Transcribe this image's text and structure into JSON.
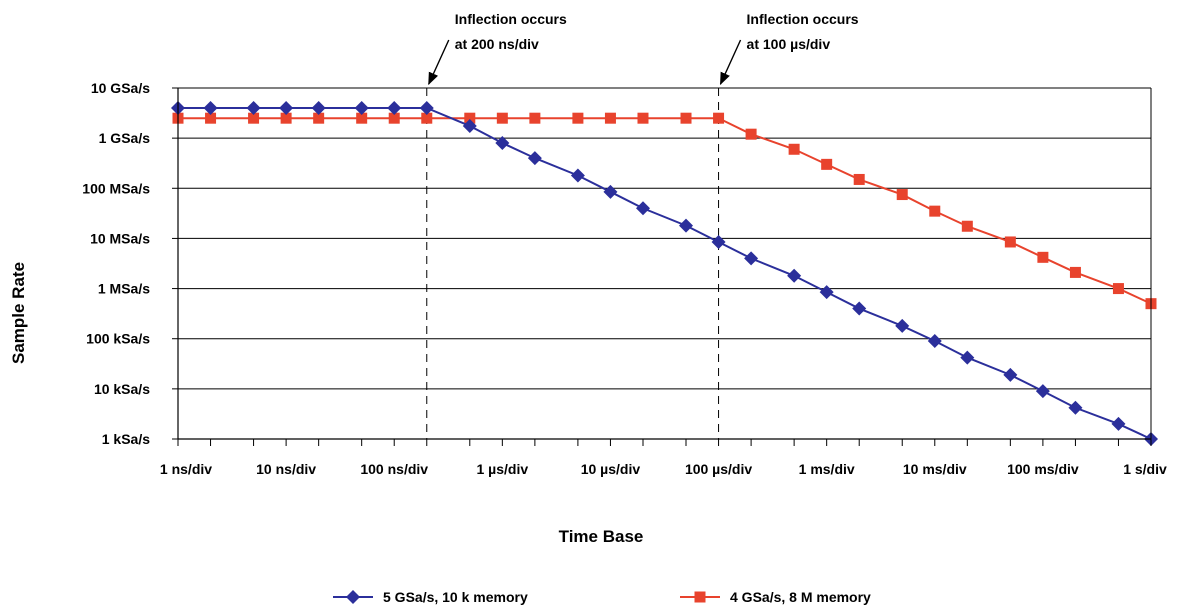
{
  "chart_data": {
    "type": "line",
    "title": "",
    "xlabel": "Time Base",
    "ylabel": "Sample Rate",
    "x_scale": "log",
    "y_scale": "log",
    "xlim": [
      "1 ns/div",
      "1 s/div"
    ],
    "ylim": [
      "1 kSa/s",
      "10 GSa/s"
    ],
    "grid": "horizontal",
    "legend": "bottom",
    "x_tick_labels": [
      "1 ns/div",
      "10 ns/div",
      "100 ns/div",
      "1 µs/div",
      "10 µs/div",
      "100 µs/div",
      "1 ms/div",
      "10 ms/div",
      "100 ms/div",
      "1 s/div"
    ],
    "y_tick_labels": [
      "10 GSa/s",
      "1 GSa/s",
      "100 MSa/s",
      "10 MSa/s",
      "1 MSa/s",
      "100 kSa/s",
      "10 kSa/s",
      "1 kSa/s"
    ],
    "x_unit": "s/div",
    "y_unit": "Sa/s",
    "x": [
      1e-09,
      2e-09,
      5e-09,
      1e-08,
      2e-08,
      5e-08,
      1e-07,
      2e-07,
      5e-07,
      1e-06,
      2e-06,
      5e-06,
      1e-05,
      2e-05,
      5e-05,
      0.0001,
      0.0002,
      0.0005,
      0.001,
      0.002,
      0.005,
      0.01,
      0.02,
      0.05,
      0.1,
      0.2,
      0.5,
      1
    ],
    "series": [
      {
        "name": "5 GSa/s, 10 k memory",
        "color": "#2b2f9b",
        "marker": "diamond",
        "values": [
          4000000000.0,
          4000000000.0,
          4000000000.0,
          4000000000.0,
          4000000000.0,
          4000000000.0,
          4000000000.0,
          4000000000.0,
          1750000000.0,
          800000000.0,
          400000000.0,
          180000000.0,
          85000000.0,
          40000000.0,
          18000000.0,
          8500000.0,
          4000000.0,
          1800000.0,
          850000.0,
          400000.0,
          180000.0,
          90000.0,
          42000.0,
          19000.0,
          9000.0,
          4200.0,
          2000.0,
          1000.0
        ]
      },
      {
        "name": "4 GSa/s, 8 M memory",
        "color": "#e8432d",
        "marker": "square",
        "values": [
          2500000000.0,
          2500000000.0,
          2500000000.0,
          2500000000.0,
          2500000000.0,
          2500000000.0,
          2500000000.0,
          2500000000.0,
          2500000000.0,
          2500000000.0,
          2500000000.0,
          2500000000.0,
          2500000000.0,
          2500000000.0,
          2500000000.0,
          2500000000.0,
          1200000000.0,
          600000000.0,
          300000000.0,
          150000000.0,
          75000000.0,
          35000000.0,
          17500000.0,
          8500000.0,
          4200000.0,
          2100000.0,
          1000000.0,
          500000.0
        ]
      }
    ],
    "annotations": [
      {
        "lines": [
          "Inflection occurs",
          "at 200 ns/div"
        ],
        "x": 2e-07
      },
      {
        "lines": [
          "Inflection occurs",
          "at 100 µs/div"
        ],
        "x": 0.0001
      }
    ]
  }
}
